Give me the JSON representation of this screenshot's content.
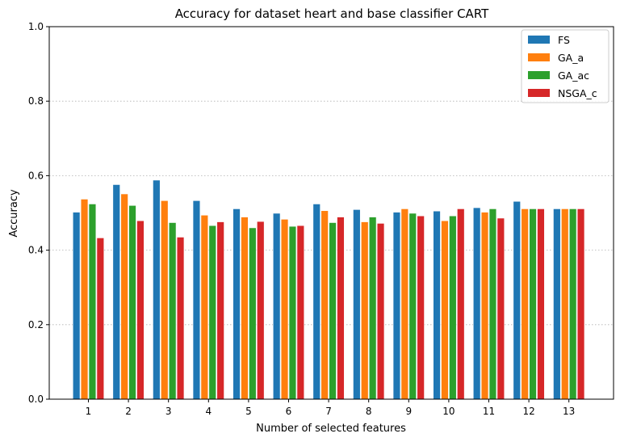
{
  "chart_data": {
    "type": "bar",
    "title": "Accuracy for dataset heart and base classifier CART",
    "xlabel": "Number of selected features",
    "ylabel": "Accuracy",
    "categories": [
      "1",
      "2",
      "3",
      "4",
      "5",
      "6",
      "7",
      "8",
      "9",
      "10",
      "11",
      "12",
      "13"
    ],
    "ylim": [
      0,
      1.0
    ],
    "yticks": [
      "0.0",
      "0.2",
      "0.4",
      "0.6",
      "0.8",
      "1.0"
    ],
    "grid": "horizontal dotted",
    "legend_position": "top-right",
    "series": [
      {
        "name": "FS",
        "color": "#1f77b4",
        "values": [
          0.502,
          0.576,
          0.588,
          0.533,
          0.511,
          0.499,
          0.524,
          0.509,
          0.502,
          0.505,
          0.514,
          0.531,
          0.511
        ]
      },
      {
        "name": "GA_a",
        "color": "#ff7f0e",
        "values": [
          0.537,
          0.551,
          0.533,
          0.494,
          0.489,
          0.483,
          0.506,
          0.476,
          0.511,
          0.479,
          0.502,
          0.511,
          0.511
        ]
      },
      {
        "name": "GA_ac",
        "color": "#2ca02c",
        "values": [
          0.524,
          0.52,
          0.474,
          0.466,
          0.46,
          0.464,
          0.474,
          0.489,
          0.499,
          0.492,
          0.511,
          0.511,
          0.511
        ]
      },
      {
        "name": "NSGA_c",
        "color": "#d62728",
        "values": [
          0.433,
          0.479,
          0.435,
          0.476,
          0.477,
          0.466,
          0.489,
          0.472,
          0.492,
          0.511,
          0.486,
          0.511,
          0.511
        ]
      }
    ]
  }
}
